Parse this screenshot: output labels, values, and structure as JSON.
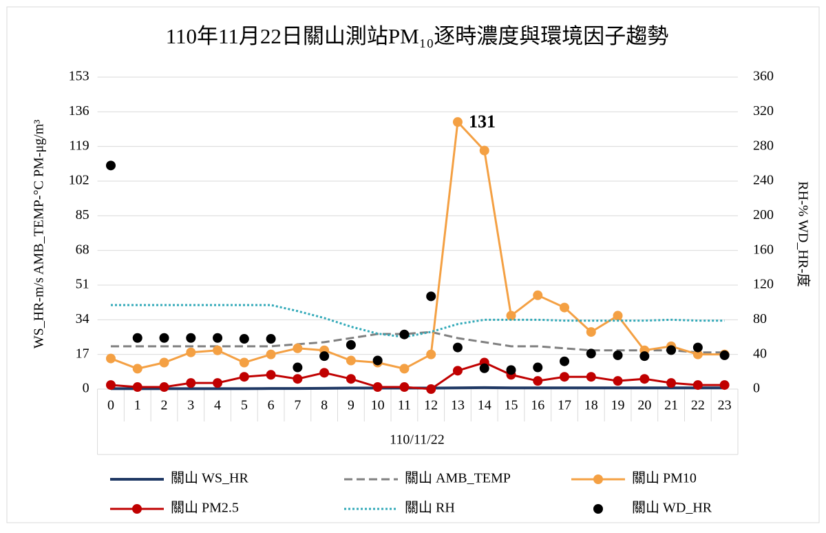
{
  "chart_data": {
    "type": "line",
    "title": "110年11月22日關山測站PM₁₀逐時濃度與環境因子趨勢",
    "y_label": "WS_HR-m/s  AMB_TEMP-°C  PM-μg/m³",
    "y2_label": "RH-%  WD_HR-度",
    "x_group_label": "110/11/22",
    "categories": [
      "0",
      "1",
      "2",
      "3",
      "4",
      "5",
      "6",
      "7",
      "8",
      "9",
      "10",
      "11",
      "12",
      "13",
      "14",
      "15",
      "16",
      "17",
      "18",
      "19",
      "20",
      "21",
      "22",
      "23"
    ],
    "ylim": [
      0,
      153
    ],
    "yticks": [
      0,
      17,
      34,
      51,
      68,
      85,
      102,
      119,
      136,
      153
    ],
    "y2lim": [
      0,
      360
    ],
    "y2ticks": [
      0,
      40,
      80,
      120,
      160,
      200,
      240,
      280,
      320,
      360
    ],
    "grid": true,
    "series": [
      {
        "name": "關山 WS_HR",
        "color": "#1f3864",
        "style": "double",
        "values": [
          0.2,
          0.2,
          0.2,
          0.2,
          0.2,
          0.2,
          0.3,
          0.3,
          0.4,
          0.5,
          0.5,
          0.5,
          0.5,
          0.6,
          0.7,
          0.6,
          0.6,
          0.6,
          0.6,
          0.6,
          0.6,
          0.6,
          0.6,
          0.6
        ]
      },
      {
        "name": "關山 AMB_TEMP",
        "color": "#7f7f7f",
        "style": "dashed",
        "values": [
          21,
          21,
          21,
          21,
          21,
          21,
          21,
          22,
          23,
          25,
          27,
          27,
          28,
          25,
          23,
          21,
          21,
          20,
          19,
          19,
          19,
          19,
          18,
          18
        ]
      },
      {
        "name": "關山 PM10",
        "color": "#f4a043",
        "style": "line-marker",
        "values": [
          15,
          10,
          13,
          18,
          19,
          13,
          17,
          20,
          19,
          14,
          13,
          10,
          17,
          131,
          117,
          36,
          46,
          40,
          28,
          36,
          19,
          21,
          17,
          17
        ],
        "value_labels": [
          null,
          null,
          null,
          null,
          null,
          null,
          null,
          null,
          null,
          null,
          null,
          null,
          null,
          "131",
          null,
          null,
          null,
          null,
          null,
          null,
          null,
          null,
          null,
          null
        ]
      },
      {
        "name": "關山 PM2.5",
        "color": "#c00000",
        "style": "line-marker",
        "values": [
          2,
          1,
          1,
          3,
          3,
          6,
          7,
          5,
          8,
          5,
          1,
          1,
          0,
          9,
          13,
          7,
          4,
          6,
          6,
          4,
          5,
          3,
          2,
          2
        ]
      },
      {
        "name": "關山 RH",
        "color": "#31a9b8",
        "style": "dotted",
        "axis": "y2",
        "values": [
          97,
          97,
          97,
          97,
          97,
          97,
          97,
          90,
          82,
          72,
          64,
          60,
          66,
          75,
          80,
          80,
          80,
          79,
          79,
          79,
          79,
          80,
          79,
          79
        ]
      },
      {
        "name": "關山 WD_HR",
        "color": "#000000",
        "style": "marker",
        "axis": "y2",
        "values": [
          258,
          59,
          59,
          59,
          59,
          58,
          58,
          25,
          38,
          51,
          33,
          63,
          107,
          48,
          24,
          22,
          25,
          32,
          41,
          39,
          38,
          45,
          48,
          39
        ]
      }
    ]
  }
}
